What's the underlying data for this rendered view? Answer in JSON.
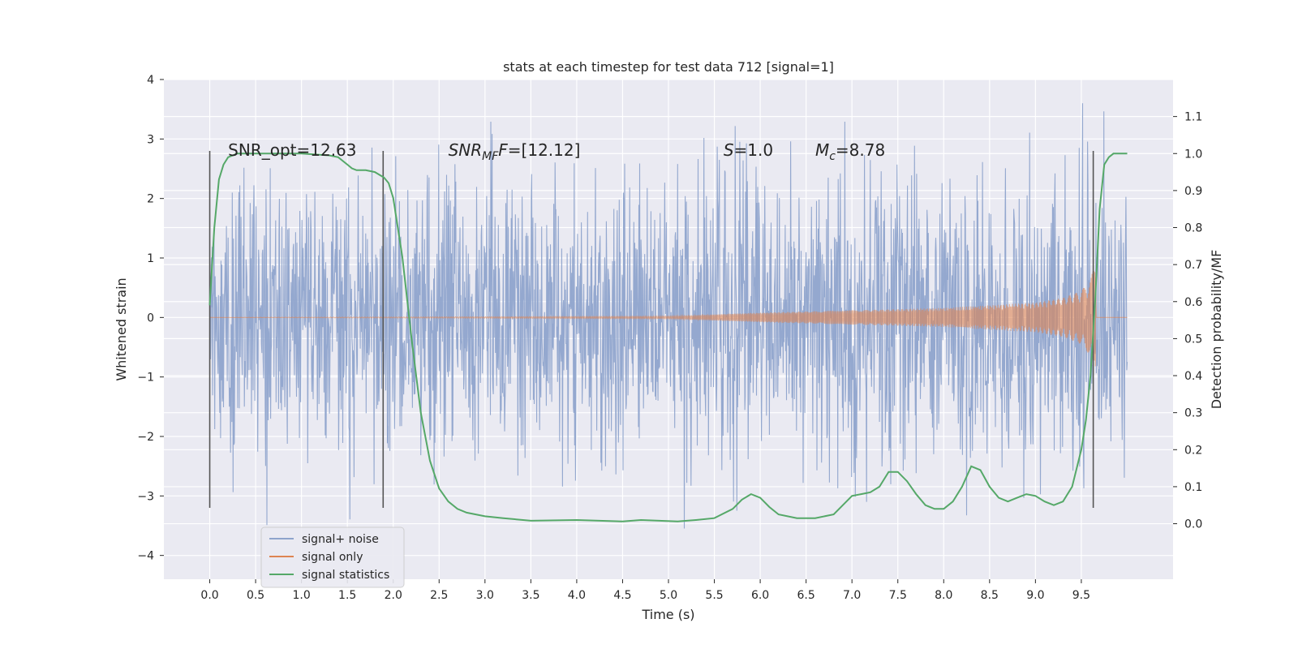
{
  "chart_data": {
    "type": "line",
    "title": "stats at each timestep for test data 712 [signal=1]",
    "xlabel": "Time (s)",
    "ylabel": "Whitened strain",
    "ylabel_right": "Detection probability/MF",
    "xlim": [
      -0.5,
      10.5
    ],
    "ylim": [
      -4.4,
      4
    ],
    "ylim_right": [
      -0.15,
      1.2
    ],
    "x_ticks": [
      "0.0",
      "0.5",
      "1.0",
      "1.5",
      "2.0",
      "2.5",
      "3.0",
      "3.5",
      "4.0",
      "4.5",
      "5.0",
      "5.5",
      "6.0",
      "6.5",
      "7.0",
      "7.5",
      "8.0",
      "8.5",
      "9.0",
      "9.5"
    ],
    "y_ticks": [
      "4",
      "3",
      "2",
      "1",
      "0",
      "−1",
      "−2",
      "−3",
      "−4"
    ],
    "y_right_ticks": [
      "1.1",
      "1.0",
      "0.9",
      "0.8",
      "0.7",
      "0.6",
      "0.5",
      "0.4",
      "0.3",
      "0.2",
      "0.1",
      "0.0"
    ],
    "grid": true,
    "legend_position": "lower-left",
    "series": [
      {
        "name": "signal+ noise",
        "color": "#8fa4cc",
        "x_range": [
          0,
          10
        ],
        "envelope": {
          "typical": 1.6,
          "max_positive": 3.6,
          "max_negative": -4.1
        }
      },
      {
        "name": "signal only",
        "color": "#dd8452",
        "x": [
          0,
          5.0,
          6.0,
          7.0,
          8.0,
          9.0,
          9.3,
          9.5,
          9.6,
          9.65,
          10.0
        ],
        "amplitude": [
          0,
          0.02,
          0.08,
          0.12,
          0.16,
          0.25,
          0.33,
          0.45,
          0.65,
          0.9,
          0
        ]
      },
      {
        "name": "signal statistics",
        "color": "#55a868",
        "axis": "right",
        "x": [
          0.0,
          0.05,
          0.1,
          0.15,
          0.2,
          0.3,
          0.5,
          0.8,
          1.0,
          1.3,
          1.4,
          1.5,
          1.55,
          1.6,
          1.7,
          1.8,
          1.9,
          1.95,
          2.0,
          2.1,
          2.2,
          2.3,
          2.4,
          2.5,
          2.6,
          2.7,
          2.8,
          3.0,
          3.2,
          3.5,
          4.0,
          4.5,
          4.7,
          4.9,
          5.1,
          5.3,
          5.5,
          5.7,
          5.8,
          5.9,
          6.0,
          6.1,
          6.2,
          6.4,
          6.6,
          6.8,
          6.9,
          7.0,
          7.1,
          7.2,
          7.3,
          7.4,
          7.5,
          7.6,
          7.7,
          7.8,
          7.9,
          8.0,
          8.1,
          8.2,
          8.3,
          8.4,
          8.5,
          8.6,
          8.7,
          8.8,
          8.9,
          9.0,
          9.1,
          9.2,
          9.3,
          9.4,
          9.5,
          9.55,
          9.6,
          9.65,
          9.7,
          9.75,
          9.8,
          9.85,
          9.9,
          10.0
        ],
        "y": [
          0.59,
          0.8,
          0.93,
          0.97,
          0.99,
          1.0,
          1.0,
          1.0,
          1.0,
          0.995,
          0.99,
          0.97,
          0.96,
          0.955,
          0.955,
          0.95,
          0.935,
          0.92,
          0.88,
          0.72,
          0.5,
          0.3,
          0.17,
          0.095,
          0.06,
          0.04,
          0.03,
          0.02,
          0.015,
          0.008,
          0.01,
          0.006,
          0.01,
          0.008,
          0.006,
          0.01,
          0.015,
          0.04,
          0.065,
          0.08,
          0.07,
          0.045,
          0.025,
          0.015,
          0.015,
          0.025,
          0.05,
          0.075,
          0.08,
          0.085,
          0.1,
          0.14,
          0.14,
          0.115,
          0.08,
          0.05,
          0.04,
          0.04,
          0.06,
          0.1,
          0.155,
          0.145,
          0.1,
          0.07,
          0.06,
          0.07,
          0.08,
          0.075,
          0.06,
          0.05,
          0.06,
          0.1,
          0.2,
          0.28,
          0.4,
          0.6,
          0.85,
          0.97,
          0.99,
          1.0,
          1.0,
          1.0
        ]
      }
    ],
    "vertical_markers": [
      0.0,
      1.89,
      9.63
    ],
    "marker_y_range": [
      -3.2,
      2.8
    ],
    "annotations": [
      {
        "text": "SNR_opt=12.63",
        "x": 0.2,
        "y": 2.72
      },
      {
        "text": "SNRMF=[12.12]",
        "parts": [
          "SNR",
          "MF",
          "F=[12.12]"
        ],
        "x": 2.6,
        "y": 2.72
      },
      {
        "text": "S=1.0",
        "parts": [
          "S",
          "=1.0"
        ],
        "x": 5.6,
        "y": 2.72
      },
      {
        "text": "Mc=8.78",
        "parts": [
          "M",
          "c",
          "=8.78"
        ],
        "x": 6.6,
        "y": 2.72
      }
    ]
  }
}
